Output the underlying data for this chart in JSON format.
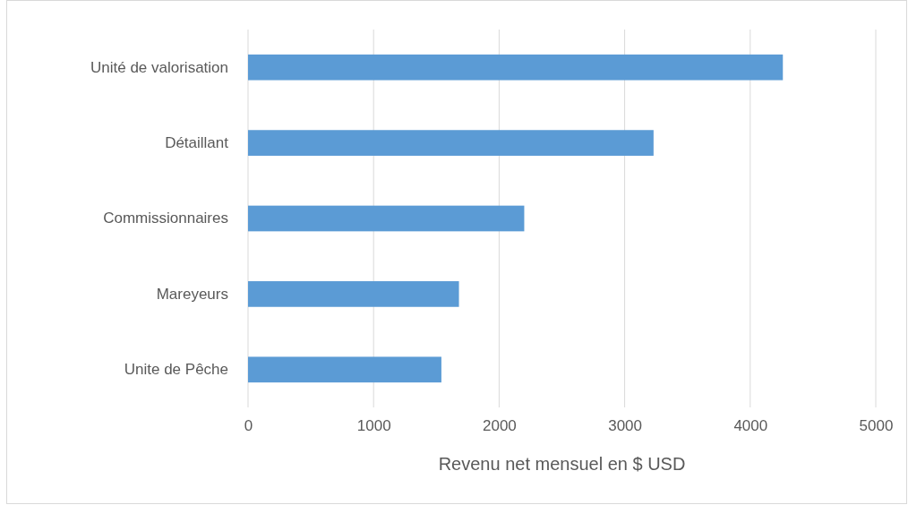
{
  "chart_data": {
    "type": "bar",
    "orientation": "horizontal",
    "categories": [
      "Unité de valorisation",
      "Détaillant",
      "Commissionnaires",
      "Mareyeurs",
      "Unite de Pêche"
    ],
    "values": [
      4260,
      3230,
      2200,
      1680,
      1540
    ],
    "color": "#5b9bd5",
    "xlim": [
      0,
      5000
    ],
    "xticks": [
      0,
      1000,
      2000,
      3000,
      4000,
      5000
    ],
    "xlabel": "Revenu net mensuel en $ USD",
    "grid": "x"
  }
}
